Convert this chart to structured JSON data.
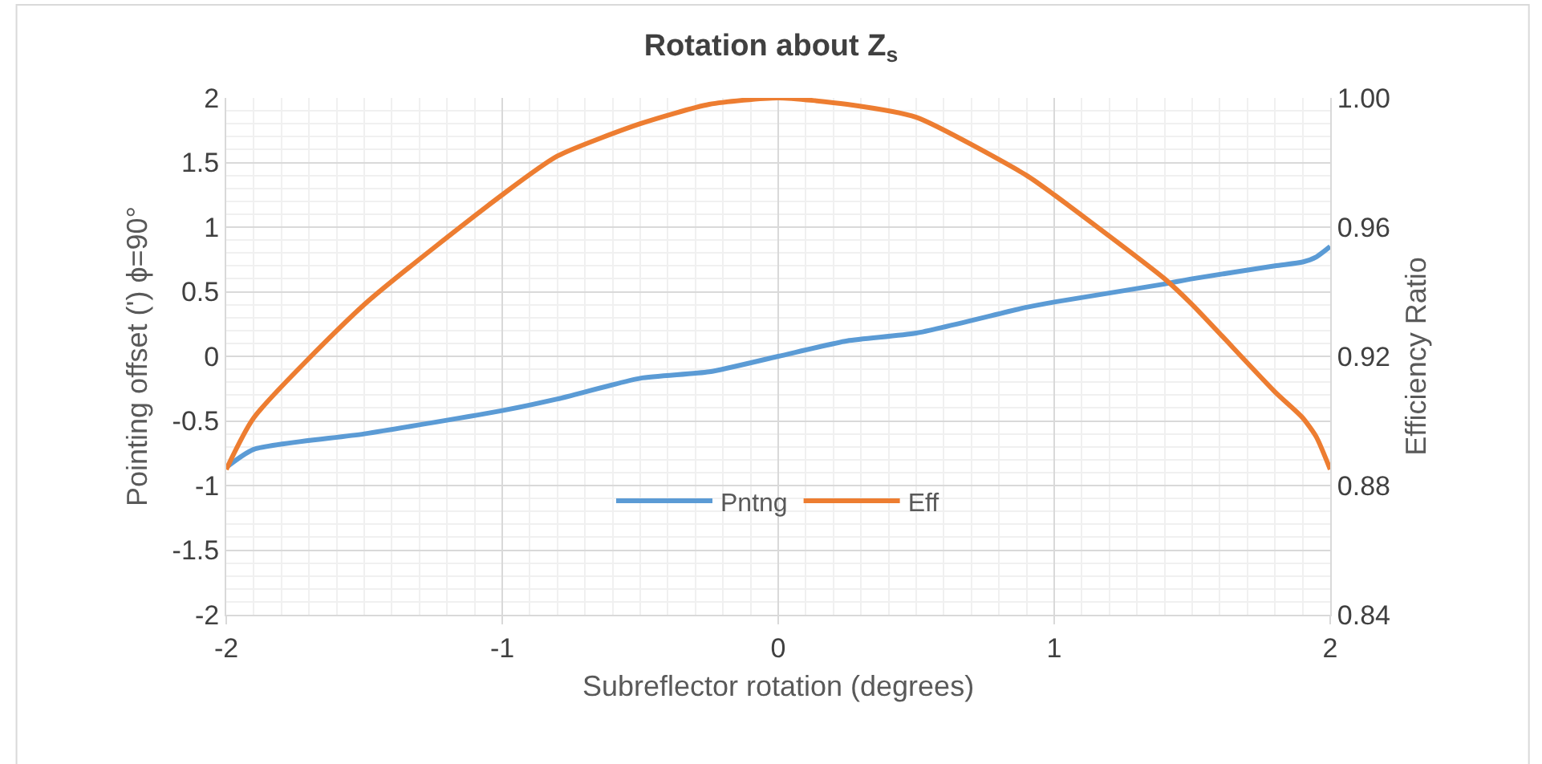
{
  "chart_data": {
    "type": "line",
    "title": "Rotation about Z$_{s}$",
    "xlabel": "Subreflector rotation (degrees)",
    "ylabel": "Pointing offset (') ϕ=90°",
    "y2label": "Efficiency Ratio",
    "x": [
      -2,
      -1.9,
      -1.5,
      -1,
      -0.8,
      -0.5,
      -0.25,
      0,
      0.25,
      0.5,
      0.9,
      1,
      1.4,
      1.5,
      1.8,
      1.9,
      1.95,
      2
    ],
    "series": [
      {
        "name": "Pntng",
        "color": "#5b9bd5",
        "values": [
          -0.86,
          -0.72,
          -0.6,
          -0.42,
          -0.33,
          -0.17,
          -0.12,
          0,
          0.12,
          0.18,
          0.38,
          0.42,
          0.56,
          0.6,
          0.7,
          0.73,
          0.77,
          0.85
        ]
      },
      {
        "name": "Eff",
        "color": "#ed7d31",
        "axis": "y2",
        "values": [
          0.885,
          0.901,
          0.936,
          0.97,
          0.982,
          0.992,
          0.998,
          1.0,
          0.998,
          0.994,
          0.976,
          0.97,
          0.944,
          0.936,
          0.909,
          0.901,
          0.895,
          0.885
        ]
      }
    ],
    "xlim": [
      -2,
      2
    ],
    "xticks": [
      -2,
      -1,
      0,
      1,
      2
    ],
    "ylim": [
      -2,
      2
    ],
    "yticks": [
      -2,
      -1.5,
      -1,
      -0.5,
      0,
      0.5,
      1,
      1.5,
      2
    ],
    "y2lim": [
      0.84,
      1.0
    ],
    "y2ticks": [
      {
        "value": 0.84,
        "label": "0.84"
      },
      {
        "value": 0.88,
        "label": "0.88"
      },
      {
        "value": 0.92,
        "label": "0.92"
      },
      {
        "value": 0.96,
        "label": "0.96"
      },
      {
        "value": 1.0,
        "label": "1.00"
      }
    ],
    "grid": true,
    "legend": "bottom",
    "marker": "none",
    "line_style": "solid"
  }
}
